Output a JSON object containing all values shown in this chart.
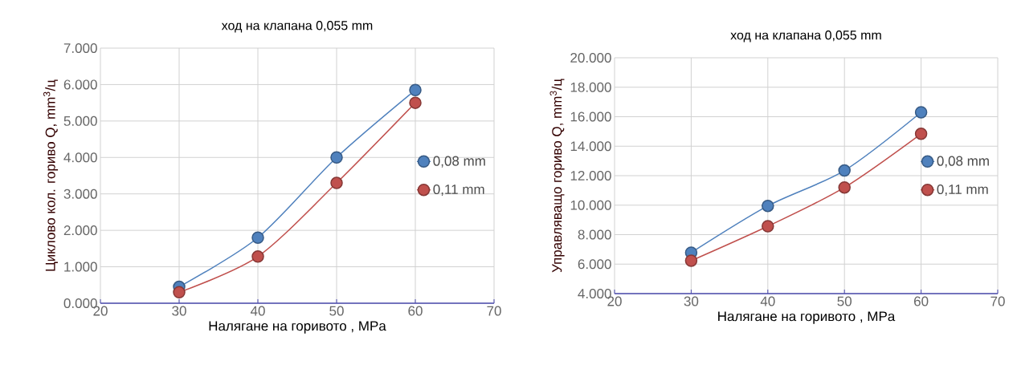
{
  "chart_data": [
    {
      "type": "line",
      "title": "ход на клапана 0,055 mm",
      "xlabel": "Налягане на горивото  , MPa",
      "ylabel": "Циклово кол. гориво Q, mm$^{3}$/ц",
      "x": [
        30,
        40,
        50,
        60
      ],
      "series": [
        {
          "name": "0,08 mm",
          "color": "#4f81bd",
          "values": [
            450,
            1800,
            4000,
            5850
          ]
        },
        {
          "name": "0,11 mm",
          "color": "#c0504d",
          "values": [
            300,
            1280,
            3300,
            5500
          ]
        }
      ],
      "xlim": [
        20,
        70
      ],
      "xticks": [
        20,
        30,
        40,
        50,
        60,
        70
      ],
      "ylim": [
        0,
        7000
      ],
      "yticks": [
        {
          "value": 0,
          "label": "0.000"
        },
        {
          "value": 1000,
          "label": "1.000"
        },
        {
          "value": 2000,
          "label": "2.000"
        },
        {
          "value": 3000,
          "label": "3.000"
        },
        {
          "value": 4000,
          "label": "4.000"
        },
        {
          "value": 5000,
          "label": "5.000"
        },
        {
          "value": 6000,
          "label": "6.000"
        },
        {
          "value": 7000,
          "label": "7.000"
        }
      ],
      "grid": true,
      "legend": "right",
      "marker": "circle"
    },
    {
      "type": "line",
      "title": "ход на клапана 0,055 mm",
      "xlabel": "Налягане на горивото  , MPa",
      "ylabel": "Управляващо гориво  Q, mm$^{3}$/ц",
      "x": [
        30,
        40,
        50,
        60
      ],
      "series": [
        {
          "name": "0,08 mm",
          "color": "#4f81bd",
          "values": [
            6780,
            9950,
            12350,
            16300
          ]
        },
        {
          "name": "0,11 mm",
          "color": "#c0504d",
          "values": [
            6230,
            8570,
            11200,
            14840
          ]
        }
      ],
      "xlim": [
        20,
        70
      ],
      "xticks": [
        20,
        30,
        40,
        50,
        60,
        70
      ],
      "ylim": [
        4000,
        20000
      ],
      "yticks": [
        {
          "value": 4000,
          "label": "4.000"
        },
        {
          "value": 6000,
          "label": "6.000"
        },
        {
          "value": 8000,
          "label": "8.000"
        },
        {
          "value": 10000,
          "label": "10.000"
        },
        {
          "value": 12000,
          "label": "12.000"
        },
        {
          "value": 14000,
          "label": "14.000"
        },
        {
          "value": 16000,
          "label": "16.000"
        },
        {
          "value": 18000,
          "label": "18.000"
        },
        {
          "value": 20000,
          "label": "20.000"
        }
      ],
      "grid": true,
      "legend": "right",
      "marker": "circle"
    }
  ]
}
